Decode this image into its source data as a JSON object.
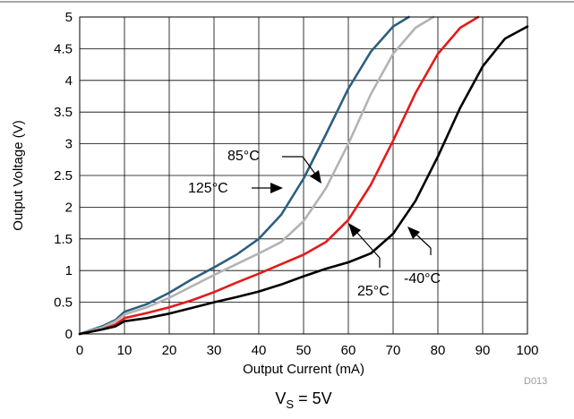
{
  "chart_data": {
    "type": "line",
    "xlabel": "Output Current (mA)",
    "ylabel": "Output Voltage (V)",
    "xlim": [
      0,
      100
    ],
    "ylim": [
      0,
      5
    ],
    "x_ticks": [
      "0",
      "10",
      "20",
      "30",
      "40",
      "50",
      "60",
      "70",
      "80",
      "90",
      "100"
    ],
    "y_ticks": [
      "0",
      "0.5",
      "1",
      "1.5",
      "2",
      "2.5",
      "3",
      "3.5",
      "4",
      "4.5",
      "5"
    ],
    "grid": true,
    "series": [
      {
        "name": "85°C",
        "color": "#2d5f7e",
        "points": [
          [
            0,
            0
          ],
          [
            5,
            0.12
          ],
          [
            8,
            0.22
          ],
          [
            10,
            0.35
          ],
          [
            15,
            0.47
          ],
          [
            20,
            0.65
          ],
          [
            25,
            0.86
          ],
          [
            30,
            1.05
          ],
          [
            35,
            1.25
          ],
          [
            40,
            1.5
          ],
          [
            45,
            1.88
          ],
          [
            50,
            2.45
          ],
          [
            55,
            3.15
          ],
          [
            60,
            3.87
          ],
          [
            65,
            4.45
          ],
          [
            70,
            4.85
          ],
          [
            73.5,
            5.0
          ]
        ]
      },
      {
        "name": "125°C",
        "color": "#b3b3b3",
        "points": [
          [
            0,
            0
          ],
          [
            5,
            0.1
          ],
          [
            8,
            0.2
          ],
          [
            10,
            0.31
          ],
          [
            15,
            0.42
          ],
          [
            20,
            0.57
          ],
          [
            25,
            0.75
          ],
          [
            30,
            0.93
          ],
          [
            35,
            1.1
          ],
          [
            40,
            1.27
          ],
          [
            45,
            1.45
          ],
          [
            50,
            1.78
          ],
          [
            55,
            2.3
          ],
          [
            60,
            3.0
          ],
          [
            65,
            3.78
          ],
          [
            70,
            4.42
          ],
          [
            75,
            4.83
          ],
          [
            79,
            5.0
          ]
        ]
      },
      {
        "name": "25°C",
        "color": "#e41a1a",
        "points": [
          [
            0,
            0
          ],
          [
            5,
            0.07
          ],
          [
            8,
            0.15
          ],
          [
            10,
            0.25
          ],
          [
            15,
            0.33
          ],
          [
            20,
            0.42
          ],
          [
            25,
            0.53
          ],
          [
            30,
            0.66
          ],
          [
            35,
            0.81
          ],
          [
            40,
            0.95
          ],
          [
            45,
            1.1
          ],
          [
            50,
            1.25
          ],
          [
            55,
            1.45
          ],
          [
            60,
            1.8
          ],
          [
            65,
            2.35
          ],
          [
            70,
            3.05
          ],
          [
            75,
            3.8
          ],
          [
            80,
            4.42
          ],
          [
            85,
            4.83
          ],
          [
            89,
            5.0
          ]
        ]
      },
      {
        "name": "-40°C",
        "color": "#000000",
        "points": [
          [
            0,
            0
          ],
          [
            5,
            0.07
          ],
          [
            8,
            0.12
          ],
          [
            10,
            0.2
          ],
          [
            15,
            0.25
          ],
          [
            20,
            0.32
          ],
          [
            25,
            0.41
          ],
          [
            30,
            0.5
          ],
          [
            35,
            0.58
          ],
          [
            40,
            0.67
          ],
          [
            45,
            0.78
          ],
          [
            50,
            0.91
          ],
          [
            55,
            1.03
          ],
          [
            60,
            1.13
          ],
          [
            65,
            1.27
          ],
          [
            70,
            1.58
          ],
          [
            75,
            2.1
          ],
          [
            80,
            2.8
          ],
          [
            85,
            3.57
          ],
          [
            90,
            4.22
          ],
          [
            95,
            4.66
          ],
          [
            100,
            4.85
          ]
        ]
      }
    ],
    "annotations": [
      {
        "label": "85°C",
        "pos": [
          35,
          2.83
        ]
      },
      {
        "label": "125°C",
        "pos": [
          29.5,
          2.28
        ]
      },
      {
        "label": "25°C",
        "pos": [
          66.5,
          0.62
        ]
      },
      {
        "label": "-40°C",
        "pos": [
          82.5,
          0.87
        ]
      }
    ]
  },
  "doc_id": "D013",
  "caption_main": "V",
  "caption_sub": "S",
  "caption_rest": " = 5V"
}
